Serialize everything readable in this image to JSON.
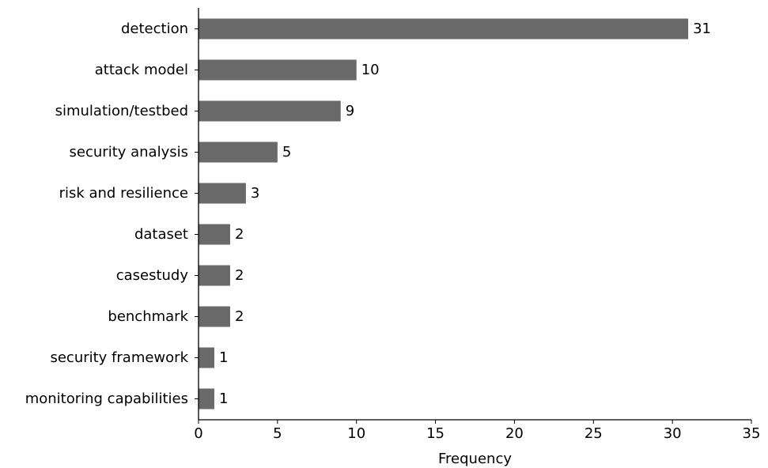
{
  "chart_data": {
    "type": "bar",
    "orientation": "horizontal",
    "categories": [
      "detection",
      "attack model",
      "simulation/testbed",
      "security analysis",
      "risk and resilience",
      "dataset",
      "casestudy",
      "benchmark",
      "security framework",
      "monitoring capabilities"
    ],
    "values": [
      31,
      10,
      9,
      5,
      3,
      2,
      2,
      2,
      1,
      1
    ],
    "xlabel": "Frequency",
    "ylabel": "",
    "xlim": [
      0,
      35
    ],
    "xticks": [
      0,
      5,
      10,
      15,
      20,
      25,
      30,
      35
    ],
    "bar_color": "#696969",
    "grid": false,
    "data_labels": true
  }
}
